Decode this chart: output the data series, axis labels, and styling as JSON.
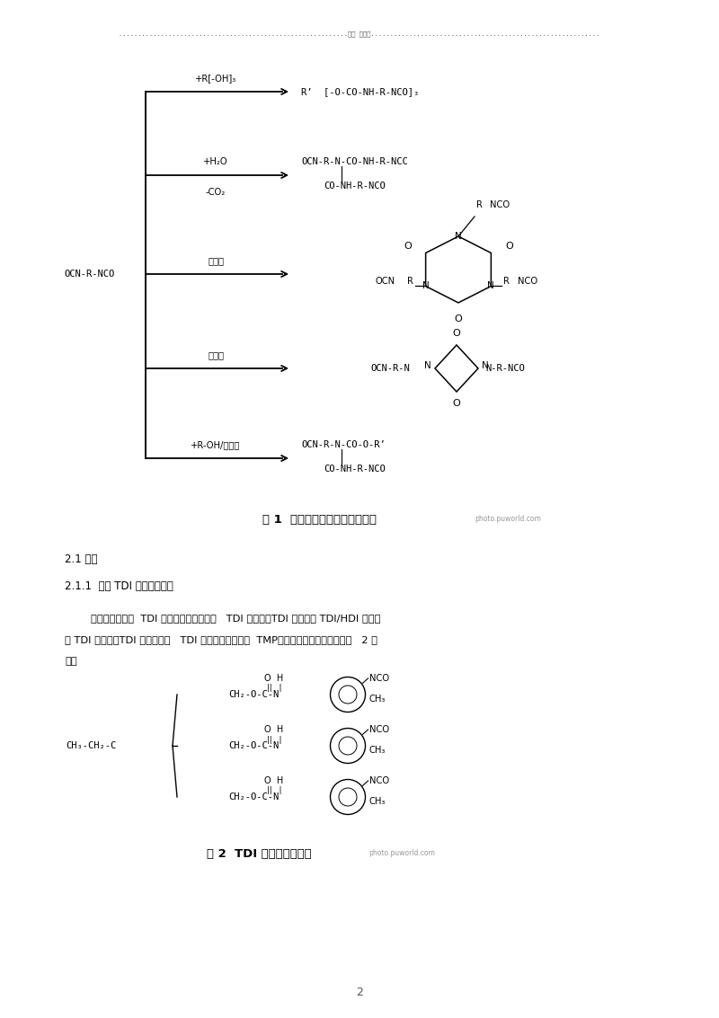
{
  "bg_color": "#ffffff",
  "page_width": 8.0,
  "page_height": 11.33,
  "header_dots_left": "............................................................",
  "header_center": "最新 科推荐",
  "header_dots_right": "............................................................",
  "fig1_caption": "图 1  二异氰酸鄠聚合反应示意图",
  "fig1_watermark": "photo.puworld.com",
  "fig2_caption": "图 2  TDI 加成物的结构式",
  "fig2_watermark": "photo.puworld.com",
  "section_21": "2.1 类型",
  "section_211": "2.1.1  基于 TDI 的聚异氰酸鄠",
  "para1": "        目前市场上基于  TDI 的聚异氰酸鄠主要有   TDI 加成物、TDI 三聚体、 TDI/HDI 共聚物",
  "para2": "和 TDI 预聚物。TDI 加成物是由   TDI 和三羟甲基丙烷（  TMP）加成所得，其结构式如图   2 所",
  "para3": "示。",
  "footer": "2"
}
